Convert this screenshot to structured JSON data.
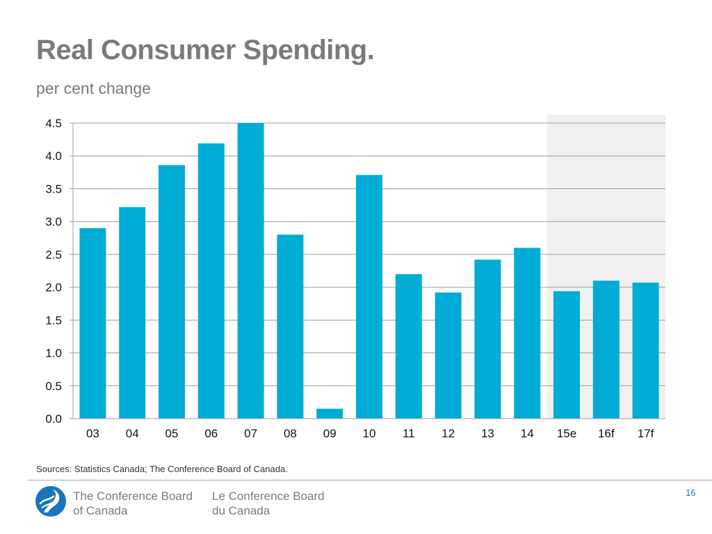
{
  "header": {
    "title": "Real Consumer Spending.",
    "subtitle": "per cent change"
  },
  "colors": {
    "bar": "#00acd6",
    "forecast_shade": "#f0f0f0",
    "grid": "#9c9c9c",
    "text": "#7a7a7a",
    "brand_blue": "#1b75bb"
  },
  "chart_data": {
    "type": "bar",
    "title": "Real Consumer Spending.",
    "subtitle": "per cent change",
    "categories": [
      "03",
      "04",
      "05",
      "06",
      "07",
      "08",
      "09",
      "10",
      "11",
      "12",
      "13",
      "14",
      "15e",
      "16f",
      "17f"
    ],
    "values": [
      2.9,
      3.22,
      3.86,
      4.19,
      4.5,
      2.8,
      0.15,
      3.71,
      2.2,
      1.92,
      2.42,
      2.6,
      1.94,
      2.1,
      2.07
    ],
    "y_ticks": [
      "0.0",
      "0.5",
      "1.0",
      "1.5",
      "2.0",
      "2.5",
      "3.0",
      "3.5",
      "4.0",
      "4.5"
    ],
    "ylim": [
      0,
      4.5
    ],
    "xlabel": "",
    "ylabel": "",
    "grid": true,
    "legend": "none",
    "shaded_categories": [
      "15e",
      "16f",
      "17f"
    ]
  },
  "footer": {
    "source": "Sources: Statistics Canada; The Conference Board of Canada.",
    "org_en_line1": "The Conference Board",
    "org_en_line2": "of Canada",
    "org_fr_line1": "Le Conference Board",
    "org_fr_line2": "du Canada",
    "page_number": "16",
    "logo_icon": "conference-board-flame-icon"
  }
}
